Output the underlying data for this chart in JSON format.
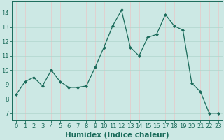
{
  "x": [
    0,
    1,
    2,
    3,
    4,
    5,
    6,
    7,
    8,
    9,
    10,
    11,
    12,
    13,
    14,
    15,
    16,
    17,
    18,
    19,
    20,
    21,
    22,
    23
  ],
  "y": [
    8.3,
    9.2,
    9.5,
    8.9,
    10.0,
    9.2,
    8.8,
    8.8,
    8.9,
    10.2,
    11.6,
    13.1,
    14.2,
    11.6,
    11.0,
    12.3,
    12.5,
    13.9,
    13.1,
    12.8,
    9.1,
    8.5,
    7.0,
    7.0
  ],
  "line_color": "#1a6b5a",
  "marker": "D",
  "marker_size": 2.0,
  "bg_color": "#cce8e4",
  "grid_color": "#b0d4cc",
  "grid_minor_color": "#e8c8c8",
  "xlabel": "Humidex (Indice chaleur)",
  "ylim": [
    6.5,
    14.8
  ],
  "xlim": [
    -0.5,
    23.5
  ],
  "yticks": [
    7,
    8,
    9,
    10,
    11,
    12,
    13,
    14
  ],
  "xticks": [
    0,
    1,
    2,
    3,
    4,
    5,
    6,
    7,
    8,
    9,
    10,
    11,
    12,
    13,
    14,
    15,
    16,
    17,
    18,
    19,
    20,
    21,
    22,
    23
  ],
  "tick_color": "#1a6b5a",
  "label_color": "#1a6b5a",
  "font_size": 6.0,
  "xlabel_fontsize": 7.5,
  "linewidth": 0.9
}
